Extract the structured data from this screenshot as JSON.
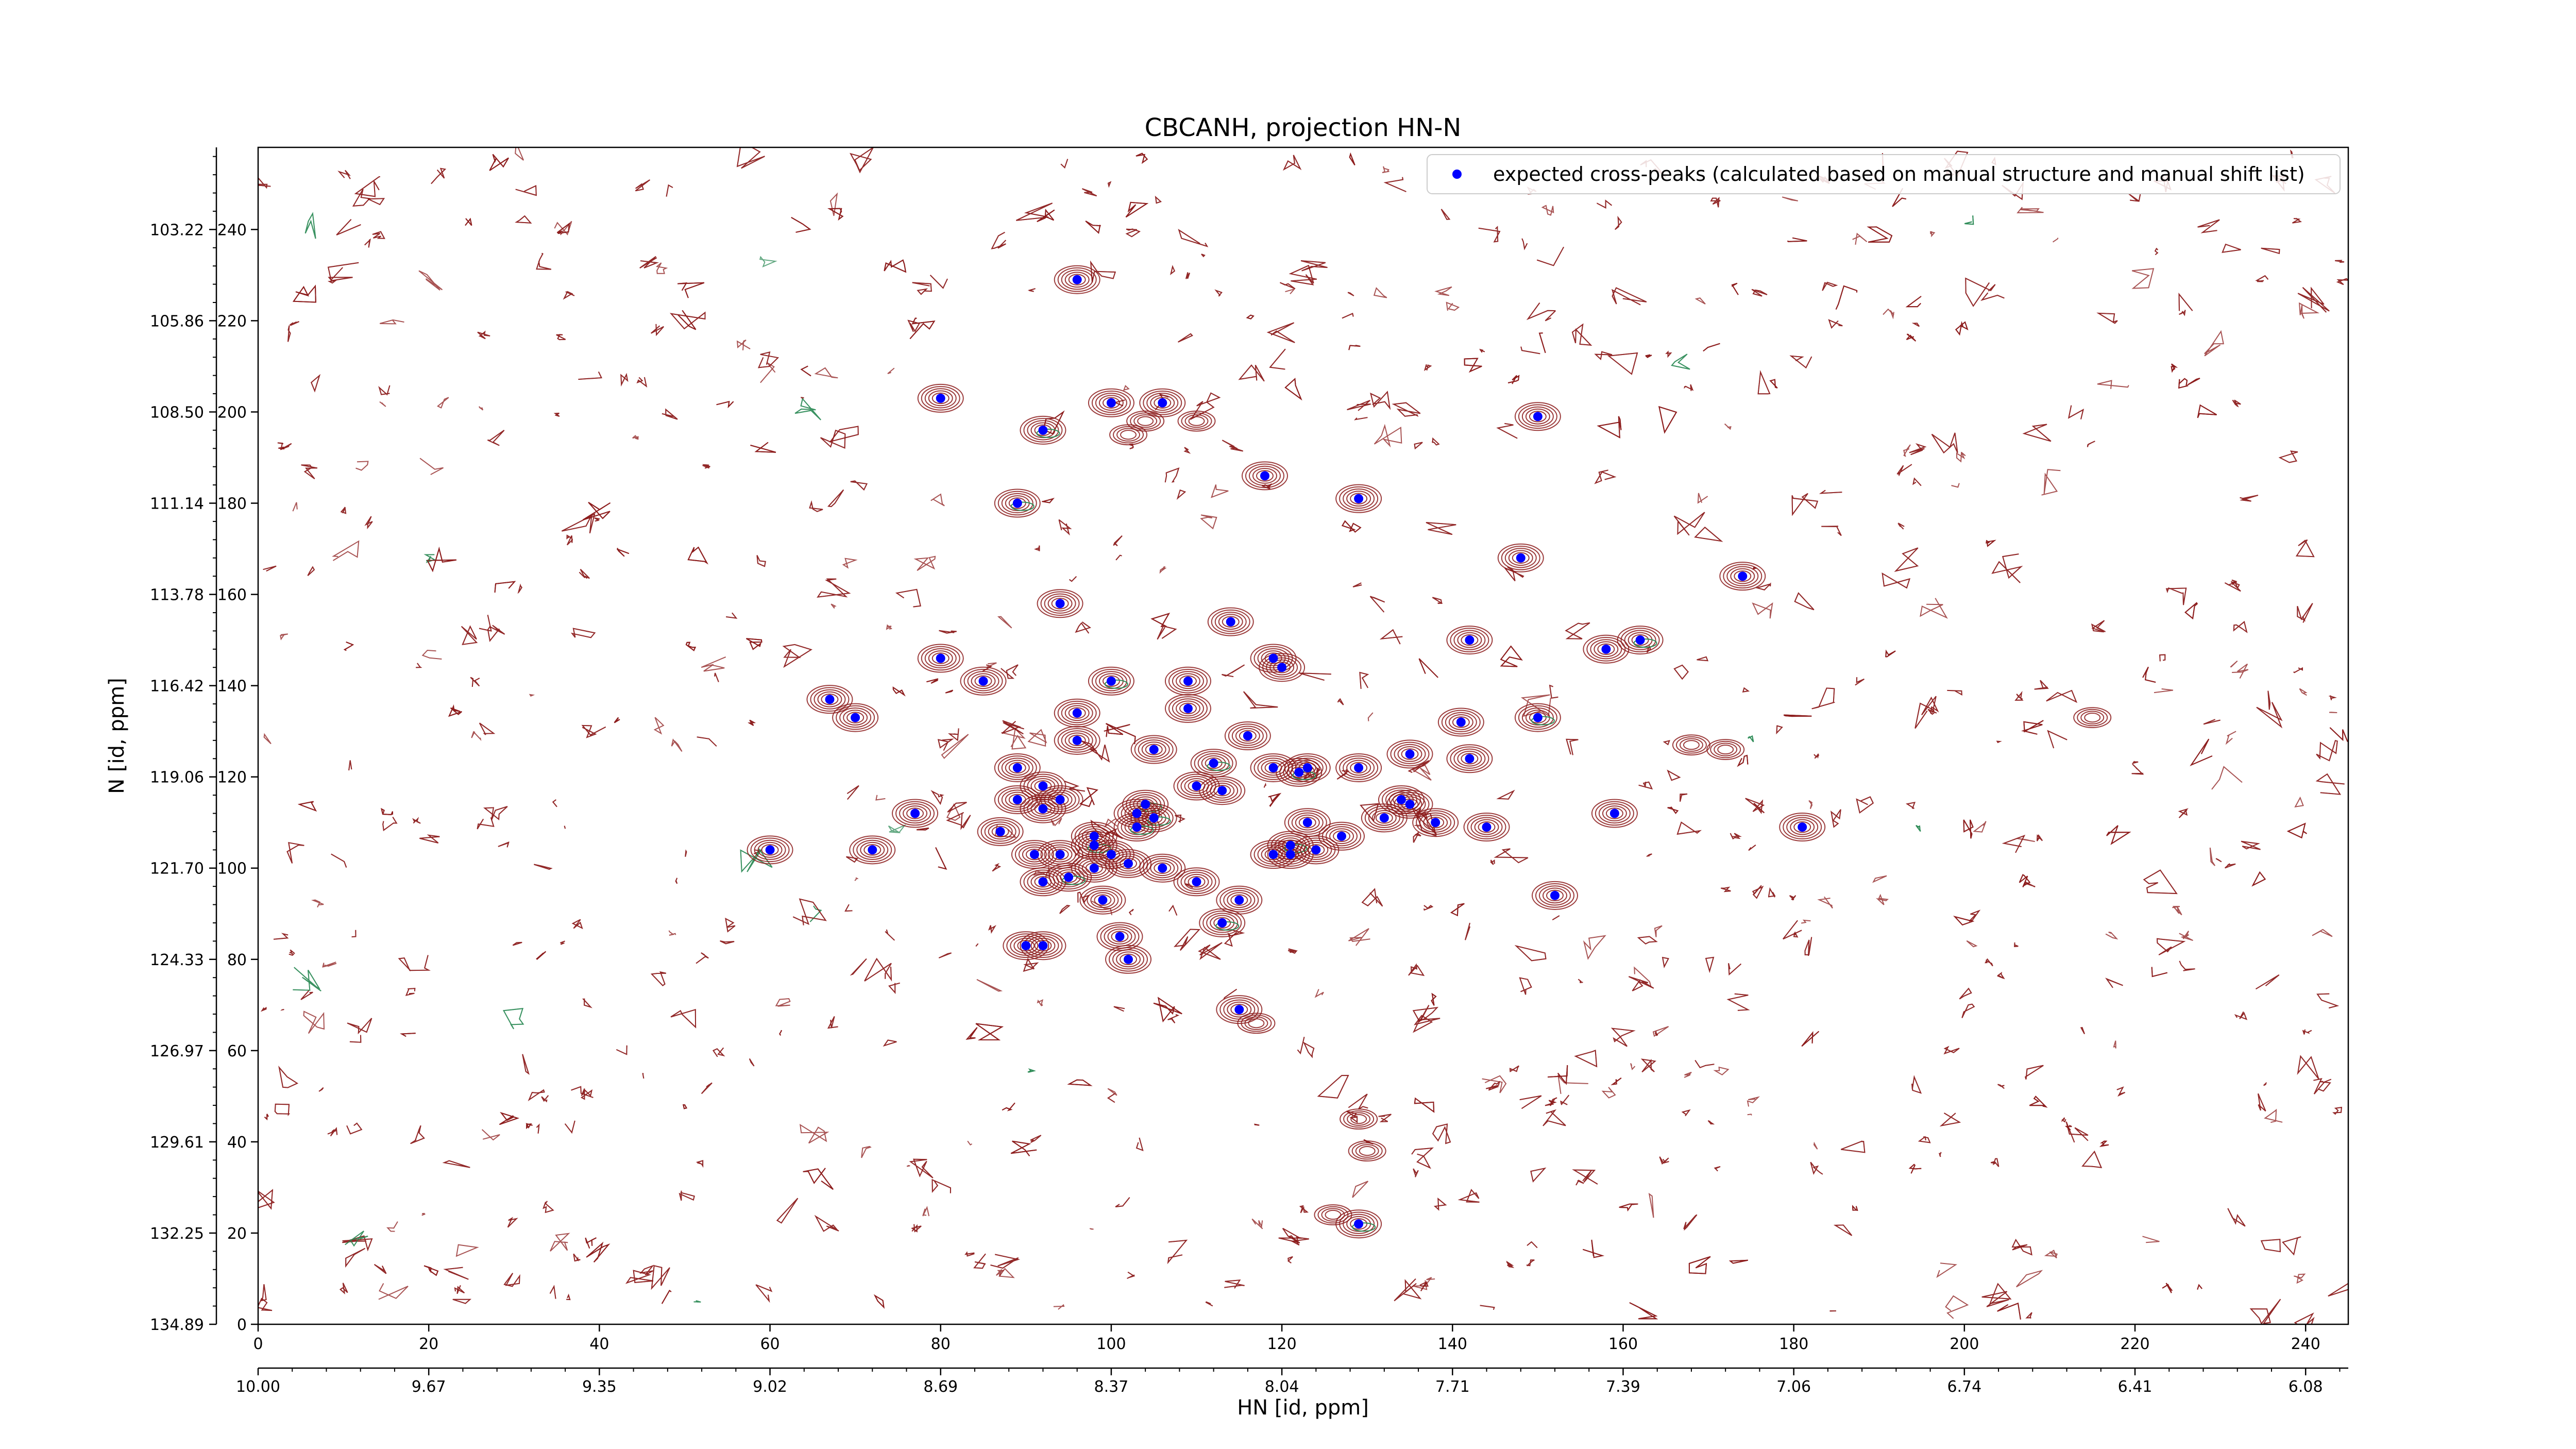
{
  "chart_data": {
    "type": "scatter",
    "title": "CBCANH, projection HN-N",
    "xlabel": "HN [id, ppm]",
    "ylabel": "N [id, ppm]",
    "xlim": [
      0,
      245
    ],
    "ylim": [
      0,
      258
    ],
    "x_index_ticks": [
      "0",
      "20",
      "40",
      "60",
      "80",
      "100",
      "120",
      "140",
      "160",
      "180",
      "200",
      "220",
      "240"
    ],
    "x_ppm_ticks": [
      "10.00",
      "9.67",
      "9.35",
      "9.02",
      "8.69",
      "8.37",
      "8.04",
      "7.71",
      "7.39",
      "7.06",
      "6.74",
      "6.41",
      "6.08"
    ],
    "y_index_ticks": [
      "0",
      "20",
      "40",
      "60",
      "80",
      "100",
      "120",
      "140",
      "160",
      "180",
      "200",
      "220",
      "240"
    ],
    "y_ppm_ticks": [
      "134.89",
      "132.25",
      "129.61",
      "126.97",
      "124.33",
      "121.70",
      "119.06",
      "116.42",
      "113.78",
      "111.14",
      "108.50",
      "105.86",
      "103.22"
    ],
    "legend": {
      "label": "expected cross-peaks (calculated based on manual structure and manual shift list)",
      "position": "top-right"
    },
    "grid": false,
    "colors": {
      "contour_positive": "#8b1a1a",
      "contour_negative": "#2e8b57",
      "marker": "#0000ff"
    },
    "series": [
      {
        "name": "expected cross-peaks (calculated based on manual structure and manual shift list)",
        "points": [
          [
            96,
            229
          ],
          [
            80,
            203
          ],
          [
            92,
            196
          ],
          [
            100,
            202
          ],
          [
            106,
            202
          ],
          [
            150,
            199
          ],
          [
            118,
            186
          ],
          [
            129,
            181
          ],
          [
            89,
            180
          ],
          [
            148,
            168
          ],
          [
            174,
            164
          ],
          [
            94,
            158
          ],
          [
            114,
            154
          ],
          [
            142,
            150
          ],
          [
            162,
            150
          ],
          [
            158,
            148
          ],
          [
            80,
            146
          ],
          [
            119,
            146
          ],
          [
            120,
            144
          ],
          [
            85,
            141
          ],
          [
            100,
            141
          ],
          [
            109,
            141
          ],
          [
            67,
            137
          ],
          [
            96,
            134
          ],
          [
            70,
            133
          ],
          [
            109,
            135
          ],
          [
            150,
            133
          ],
          [
            141,
            132
          ],
          [
            96,
            128
          ],
          [
            116,
            129
          ],
          [
            105,
            126
          ],
          [
            135,
            125
          ],
          [
            112,
            123
          ],
          [
            119,
            122
          ],
          [
            123,
            122
          ],
          [
            129,
            122
          ],
          [
            142,
            124
          ],
          [
            89,
            122
          ],
          [
            122,
            121
          ],
          [
            92,
            118
          ],
          [
            110,
            118
          ],
          [
            113,
            117
          ],
          [
            89,
            115
          ],
          [
            94,
            115
          ],
          [
            104,
            114
          ],
          [
            134,
            115
          ],
          [
            135,
            114
          ],
          [
            77,
            112
          ],
          [
            159,
            112
          ],
          [
            103,
            112
          ],
          [
            105,
            111
          ],
          [
            132,
            111
          ],
          [
            92,
            113
          ],
          [
            144,
            109
          ],
          [
            181,
            109
          ],
          [
            138,
            110
          ],
          [
            103,
            109
          ],
          [
            87,
            108
          ],
          [
            98,
            107
          ],
          [
            123,
            110
          ],
          [
            127,
            107
          ],
          [
            121,
            103
          ],
          [
            98,
            105
          ],
          [
            60,
            104
          ],
          [
            72,
            104
          ],
          [
            91,
            103
          ],
          [
            94,
            103
          ],
          [
            100,
            103
          ],
          [
            121,
            105
          ],
          [
            124,
            104
          ],
          [
            119,
            103
          ],
          [
            98,
            100
          ],
          [
            102,
            101
          ],
          [
            106,
            100
          ],
          [
            95,
            98
          ],
          [
            110,
            97
          ],
          [
            92,
            97
          ],
          [
            99,
            93
          ],
          [
            115,
            93
          ],
          [
            152,
            94
          ],
          [
            113,
            88
          ],
          [
            101,
            85
          ],
          [
            90,
            83
          ],
          [
            92,
            83
          ],
          [
            102,
            80
          ],
          [
            115,
            69
          ],
          [
            129,
            22
          ]
        ]
      }
    ]
  }
}
